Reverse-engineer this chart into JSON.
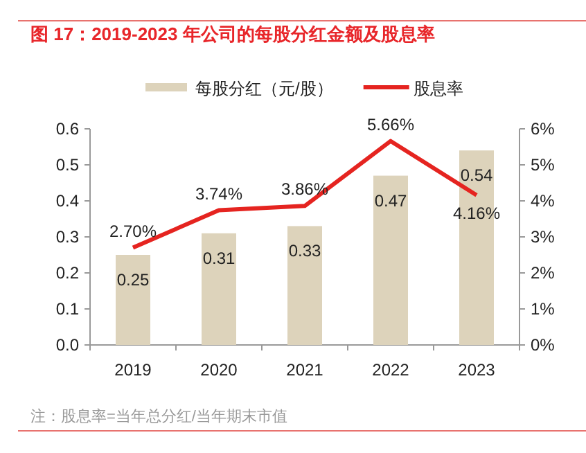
{
  "chart_data": {
    "type": "bar",
    "title": "图 17：2019-2023 年公司的每股分红金额及股息率",
    "categories": [
      "2019",
      "2020",
      "2021",
      "2022",
      "2023"
    ],
    "series": [
      {
        "name": "每股分红（元/股）",
        "color": "#ddd3bb",
        "values": [
          0.25,
          0.31,
          0.33,
          0.47,
          0.54
        ],
        "value_labels": [
          "0.25",
          "0.31",
          "0.33",
          "0.47",
          "0.54"
        ]
      },
      {
        "name": "股息率",
        "type": "line",
        "axis": "y2",
        "color": "#e52420",
        "values": [
          2.7,
          3.74,
          3.86,
          5.66,
          4.16
        ],
        "value_labels": [
          "2.70%",
          "3.74%",
          "3.86%",
          "5.66%",
          "4.16%"
        ]
      }
    ],
    "ylim": [
      0,
      0.6
    ],
    "yticks": [
      "0.0",
      0.1,
      0.2,
      0.3,
      0.4,
      0.5,
      0.6
    ],
    "y2lim": [
      0,
      6
    ],
    "y2ticks": [
      {
        "value": 0,
        "label": "0%"
      },
      {
        "value": 1,
        "label": "1%"
      },
      {
        "value": 2,
        "label": "2%"
      },
      {
        "value": 3,
        "label": "3%"
      },
      {
        "value": 4,
        "label": "4%"
      },
      {
        "value": 5,
        "label": "5%"
      },
      {
        "value": 6,
        "label": "6%"
      }
    ],
    "legend": "top",
    "grid": false,
    "marker": "none",
    "annotations": [
      "注：股息率=当年总分红/当年期末市值"
    ]
  }
}
